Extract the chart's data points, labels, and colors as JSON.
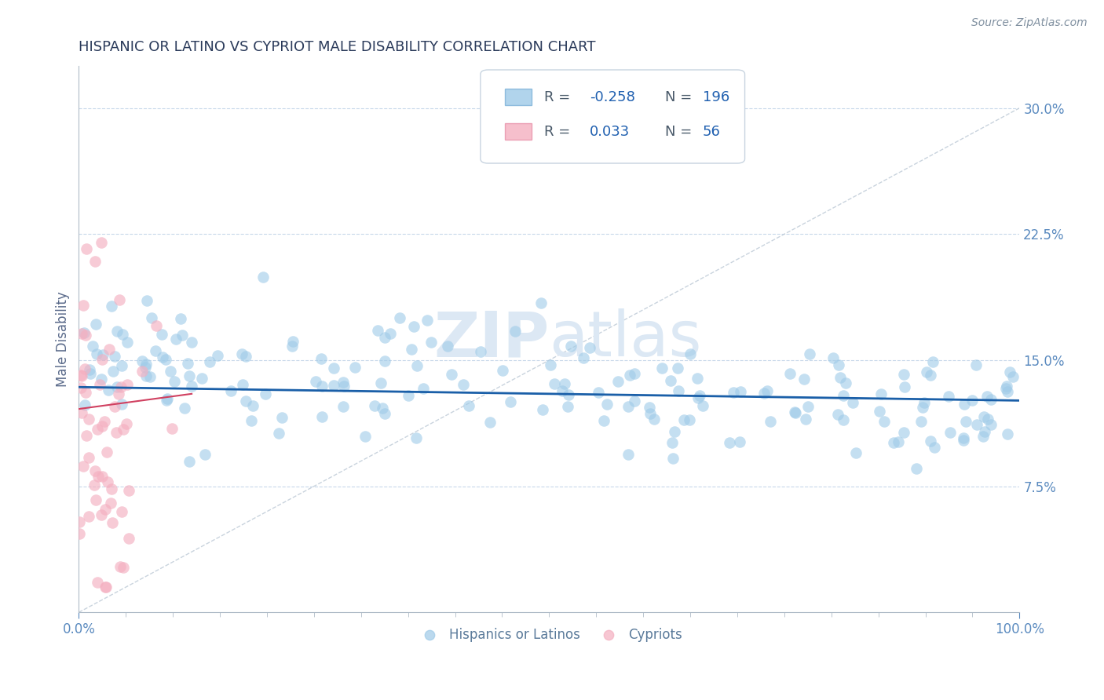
{
  "title": "HISPANIC OR LATINO VS CYPRIOT MALE DISABILITY CORRELATION CHART",
  "source_text": "Source: ZipAtlas.com",
  "ylabel": "Male Disability",
  "xlim": [
    0.0,
    1.0
  ],
  "ylim": [
    0.0,
    0.325
  ],
  "yticks": [
    0.075,
    0.15,
    0.225,
    0.3
  ],
  "ytick_labels": [
    "7.5%",
    "15.0%",
    "22.5%",
    "30.0%"
  ],
  "xtick_labels_shown": [
    "0.0%",
    "100.0%"
  ],
  "xtick_positions_shown": [
    0.0,
    1.0
  ],
  "blue_R": -0.258,
  "blue_N": 196,
  "pink_R": 0.033,
  "pink_N": 56,
  "blue_color": "#9ecae8",
  "pink_color": "#f4afc0",
  "blue_edge_color": "#7ab0d8",
  "pink_edge_color": "#e890a8",
  "blue_line_color": "#1a5fa8",
  "pink_line_color": "#d04060",
  "title_color": "#2a3a5a",
  "axis_label_color": "#5a6a8a",
  "tick_label_color": "#5a8abf",
  "watermark_color": "#dce8f4",
  "background_color": "#ffffff",
  "grid_color": "#c8d8ea",
  "diag_line_color": "#c0ccd8",
  "legend_text_color": "#2060b0",
  "legend_border_color": "#c8d4e0",
  "bottom_legend_color": "#5a7a9a",
  "blue_line_y0": 0.134,
  "blue_line_y1": 0.126,
  "pink_line_x0": 0.0,
  "pink_line_x1": 0.12,
  "pink_line_y0": 0.121,
  "pink_line_y1": 0.13
}
